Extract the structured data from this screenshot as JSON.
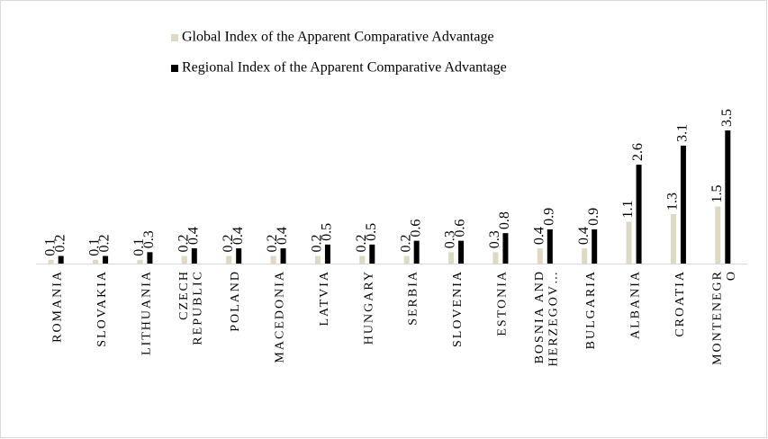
{
  "chart_data": {
    "type": "bar",
    "categories": [
      "ROMANIA",
      "SLOVAKIA",
      "LITHUANIA",
      "CZECH REPUBLIC",
      "POLAND",
      "MACEDONIA",
      "LATVIA",
      "HUNGARY",
      "SERBIA",
      "SLOVENIA",
      "ESTONIA",
      "BOSNIA AND HERZEGOV…",
      "BULGARIA",
      "ALBANIA",
      "CROATIA",
      "MONTENEGRO"
    ],
    "series": [
      {
        "name": "Global Index of the Apparent Comparative Advantage",
        "color": "#ddd9c3",
        "values": [
          0.1,
          0.1,
          0.1,
          0.2,
          0.2,
          0.2,
          0.2,
          0.2,
          0.2,
          0.3,
          0.3,
          0.4,
          0.4,
          1.1,
          1.3,
          1.5
        ]
      },
      {
        "name": "Regional Index of the Apparent Comparative Advantage",
        "color": "#000000",
        "values": [
          0.2,
          0.2,
          0.3,
          0.4,
          0.4,
          0.4,
          0.5,
          0.5,
          0.6,
          0.6,
          0.8,
          0.9,
          0.9,
          2.6,
          3.1,
          3.5
        ]
      }
    ]
  }
}
